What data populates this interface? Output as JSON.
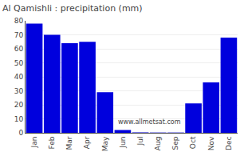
{
  "chart_data": {
    "type": "bar",
    "title": "Al Qamishli : precipitation (mm)",
    "categories": [
      "Jan",
      "Feb",
      "Mar",
      "Apr",
      "May",
      "Jun",
      "Jul",
      "Aug",
      "Sep",
      "Oct",
      "Nov",
      "Dec"
    ],
    "values": [
      78,
      70,
      64,
      65,
      29,
      2,
      0.3,
      0.2,
      0.2,
      21,
      36,
      68
    ],
    "color": "#0000dd",
    "ylim": [
      0,
      80
    ],
    "yticks": [
      0,
      10,
      20,
      30,
      40,
      50,
      60,
      70,
      80
    ],
    "grid": true,
    "annotations": [
      "www.allmetsat.com"
    ]
  }
}
